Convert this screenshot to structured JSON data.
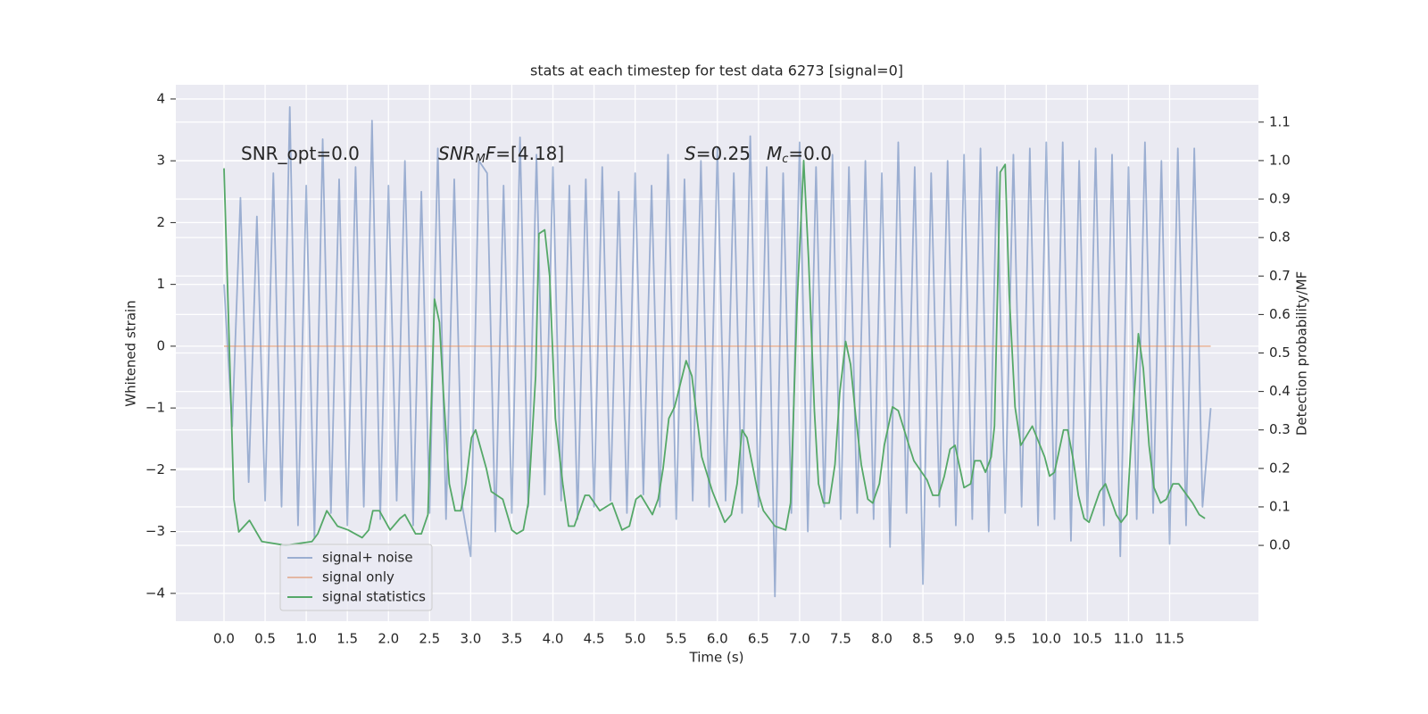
{
  "chart_data": {
    "type": "line",
    "title": "stats at each timestep for test data 6273 [signal=0]",
    "xlabel": "Time (s)",
    "ylabel": "Whitened strain",
    "y2label": "Detection probability/MF",
    "annotations": [
      [
        "SNR_opt=0.0"
      ],
      [
        "SNR",
        "M",
        "F",
        "=[4.18]"
      ],
      [
        "S",
        "=0.25"
      ],
      [
        "M",
        "c",
        "=0.0"
      ]
    ],
    "xlim": [
      -0.586,
      12.58
    ],
    "ylim": [
      -4.45,
      4.23
    ],
    "y2lim": [
      -0.197,
      1.197
    ],
    "xticks": [
      {
        "value": 0,
        "label": "0.0"
      },
      0.5,
      {
        "value": 1,
        "label": "1.0"
      },
      1.5,
      {
        "value": 2,
        "label": "2.0"
      },
      2.5,
      {
        "value": 3,
        "label": "3.0"
      },
      3.5,
      {
        "value": 4,
        "label": "4.0"
      },
      4.5,
      {
        "value": 5,
        "label": "5.0"
      },
      5.5,
      {
        "value": 6,
        "label": "6.0"
      },
      6.5,
      {
        "value": 7,
        "label": "7.0"
      },
      7.5,
      {
        "value": 8,
        "label": "8.0"
      },
      8.5,
      {
        "value": 9,
        "label": "9.0"
      },
      9.5,
      {
        "value": 10,
        "label": "10.0"
      },
      10.5,
      {
        "value": 11,
        "label": "11.0"
      },
      11.5
    ],
    "yticks": [
      {
        "value": -4,
        "label": "−4"
      },
      {
        "value": -3,
        "label": "−3"
      },
      {
        "value": -2,
        "label": "−2"
      },
      {
        "value": -1,
        "label": "−1"
      },
      0,
      1,
      2,
      3,
      4
    ],
    "y2ticks": [
      {
        "value": 0,
        "label": "0.0"
      },
      0.1,
      0.2,
      0.3,
      0.4,
      0.5,
      0.6,
      0.7,
      0.8,
      0.9,
      {
        "value": 1,
        "label": "1.0"
      },
      1.1
    ],
    "grid": true,
    "legend": "lower left",
    "series": [
      {
        "name": "signal+ noise",
        "color": "#4c72b0",
        "alpha": 0.5,
        "x": [
          0,
          0.1,
          0.2,
          0.3,
          0.4,
          0.5,
          0.6,
          0.7,
          0.8,
          0.9,
          1,
          1.1,
          1.2,
          1.3,
          1.4,
          1.5,
          1.6,
          1.7,
          1.8,
          1.9,
          2,
          2.1,
          2.2,
          2.3,
          2.4,
          2.5,
          2.6,
          2.7,
          2.8,
          2.9,
          3,
          3.1,
          3.2,
          3.3,
          3.4,
          3.5,
          3.6,
          3.7,
          3.8,
          3.9,
          4,
          4.1,
          4.2,
          4.3,
          4.4,
          4.5,
          4.6,
          4.7,
          4.8,
          4.9,
          5,
          5.1,
          5.2,
          5.3,
          5.4,
          5.5,
          5.6,
          5.7,
          5.8,
          5.9,
          6,
          6.1,
          6.2,
          6.3,
          6.4,
          6.5,
          6.6,
          6.7,
          6.8,
          6.9,
          7,
          7.1,
          7.2,
          7.3,
          7.4,
          7.5,
          7.6,
          7.7,
          7.8,
          7.9,
          8,
          8.1,
          8.2,
          8.3,
          8.4,
          8.5,
          8.6,
          8.7,
          8.8,
          8.9,
          9,
          9.1,
          9.2,
          9.3,
          9.4,
          9.5,
          9.6,
          9.7,
          9.8,
          9.9,
          10,
          10.1,
          10.2,
          10.3,
          10.4,
          10.5,
          10.6,
          10.7,
          10.8,
          10.9,
          11,
          11.1,
          11.2,
          11.3,
          11.4,
          11.5,
          11.6,
          11.7,
          11.8,
          11.9,
          12
        ],
        "values": [
          1.0,
          -1.3,
          2.4,
          -2.2,
          2.1,
          -2.5,
          2.8,
          -2.6,
          3.87,
          -2.9,
          2.6,
          -3.1,
          3.35,
          -2.7,
          2.7,
          -2.9,
          2.9,
          -2.6,
          3.65,
          -2.8,
          2.6,
          -2.5,
          3.0,
          -2.9,
          2.5,
          -2.7,
          3.2,
          -2.8,
          2.7,
          -2.6,
          -3.4,
          3.0,
          2.8,
          -3.0,
          2.6,
          -2.7,
          3.38,
          -2.6,
          3.1,
          -2.4,
          2.9,
          -2.5,
          2.6,
          -2.8,
          2.7,
          -2.6,
          2.9,
          -2.5,
          2.5,
          -2.7,
          2.8,
          -2.4,
          2.6,
          -2.6,
          3.1,
          -2.8,
          2.7,
          -2.5,
          3.0,
          -2.6,
          3.2,
          -2.5,
          2.8,
          -2.7,
          3.4,
          -2.6,
          2.9,
          -4.05,
          2.8,
          -2.7,
          3.3,
          -3.0,
          2.9,
          -2.6,
          3.1,
          -2.8,
          2.9,
          -2.7,
          3.0,
          -2.8,
          2.8,
          -3.25,
          3.3,
          -2.7,
          2.9,
          -3.85,
          2.8,
          -2.6,
          3.0,
          -2.9,
          3.1,
          -2.8,
          3.2,
          -3.0,
          2.9,
          -2.7,
          3.1,
          -2.6,
          3.2,
          -2.9,
          3.3,
          -2.8,
          3.3,
          -3.15,
          3.0,
          -2.8,
          3.2,
          -2.9,
          3.1,
          -3.4,
          2.9,
          -2.8,
          3.3,
          -2.7,
          3.0,
          -3.2,
          3.2,
          -2.9,
          3.2,
          -2.6,
          -1.0
        ]
      },
      {
        "name": "signal only",
        "color": "#dd8452",
        "alpha": 0.5,
        "x": [
          0,
          12
        ],
        "values": [
          0,
          0
        ]
      },
      {
        "name": "signal statistics",
        "color": "#55a868",
        "alpha": 1,
        "axis": "y2",
        "x": [
          0,
          0.12,
          0.18,
          0.31,
          0.46,
          0.75,
          1.07,
          1.14,
          1.25,
          1.38,
          1.51,
          1.68,
          1.76,
          1.81,
          1.89,
          2.02,
          2.14,
          2.2,
          2.33,
          2.4,
          2.48,
          2.56,
          2.62,
          2.67,
          2.74,
          2.81,
          2.88,
          2.94,
          3.01,
          3.06,
          3.19,
          3.25,
          3.39,
          3.5,
          3.56,
          3.64,
          3.7,
          3.79,
          3.83,
          3.9,
          3.96,
          4.03,
          4.12,
          4.19,
          4.26,
          4.39,
          4.44,
          4.57,
          4.72,
          4.84,
          4.93,
          5.01,
          5.07,
          5.21,
          5.28,
          5.34,
          5.41,
          5.48,
          5.62,
          5.69,
          5.81,
          5.94,
          6.09,
          6.17,
          6.24,
          6.3,
          6.36,
          6.49,
          6.56,
          6.7,
          6.83,
          6.89,
          6.97,
          7.05,
          7.11,
          7.18,
          7.23,
          7.29,
          7.36,
          7.43,
          7.49,
          7.56,
          7.62,
          7.68,
          7.75,
          7.83,
          7.89,
          7.97,
          8.03,
          8.13,
          8.2,
          8.33,
          8.39,
          8.55,
          8.62,
          8.69,
          8.76,
          8.83,
          8.89,
          9,
          9.08,
          9.13,
          9.2,
          9.26,
          9.33,
          9.37,
          9.44,
          9.5,
          9.55,
          9.62,
          9.69,
          9.83,
          9.98,
          10.04,
          10.1,
          10.21,
          10.26,
          10.33,
          10.39,
          10.46,
          10.52,
          10.65,
          10.72,
          10.85,
          10.91,
          10.98,
          11.04,
          11.12,
          11.18,
          11.25,
          11.31,
          11.39,
          11.46,
          11.54,
          11.61,
          11.78,
          11.86,
          11.93
        ],
        "values": [
          0.98,
          0.12,
          0.035,
          0.065,
          0.01,
          0,
          0.01,
          0.03,
          0.09,
          0.05,
          0.04,
          0.02,
          0.04,
          0.09,
          0.09,
          0.04,
          0.07,
          0.08,
          0.03,
          0.03,
          0.08,
          0.64,
          0.58,
          0.39,
          0.16,
          0.09,
          0.09,
          0.16,
          0.28,
          0.3,
          0.2,
          0.14,
          0.12,
          0.04,
          0.03,
          0.04,
          0.11,
          0.44,
          0.81,
          0.82,
          0.7,
          0.33,
          0.16,
          0.05,
          0.05,
          0.13,
          0.13,
          0.09,
          0.11,
          0.04,
          0.05,
          0.12,
          0.13,
          0.08,
          0.12,
          0.2,
          0.33,
          0.36,
          0.48,
          0.44,
          0.23,
          0.14,
          0.06,
          0.08,
          0.16,
          0.3,
          0.28,
          0.14,
          0.09,
          0.05,
          0.04,
          0.11,
          0.63,
          1.0,
          0.74,
          0.35,
          0.16,
          0.11,
          0.11,
          0.21,
          0.4,
          0.53,
          0.47,
          0.34,
          0.21,
          0.12,
          0.11,
          0.16,
          0.26,
          0.36,
          0.35,
          0.26,
          0.22,
          0.17,
          0.13,
          0.13,
          0.18,
          0.25,
          0.26,
          0.15,
          0.16,
          0.22,
          0.22,
          0.19,
          0.23,
          0.31,
          0.97,
          0.99,
          0.65,
          0.36,
          0.26,
          0.31,
          0.23,
          0.18,
          0.19,
          0.3,
          0.3,
          0.22,
          0.13,
          0.07,
          0.06,
          0.14,
          0.16,
          0.08,
          0.06,
          0.08,
          0.3,
          0.55,
          0.46,
          0.26,
          0.15,
          0.11,
          0.12,
          0.16,
          0.16,
          0.11,
          0.08,
          0.07
        ]
      }
    ]
  }
}
